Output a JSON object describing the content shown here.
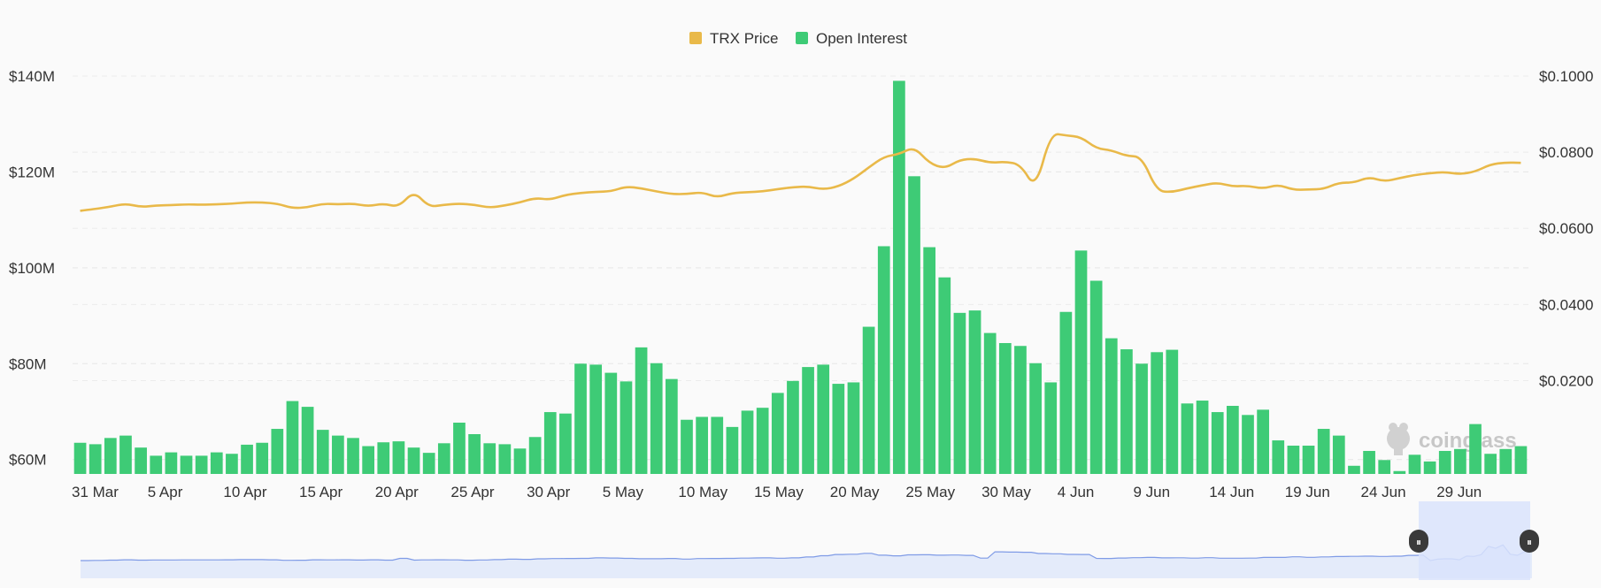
{
  "chart_data": {
    "type": "bar+line",
    "legend": {
      "placement": "top-center",
      "items": [
        {
          "label": "TRX Price",
          "color": "#e9b949"
        },
        {
          "label": "Open Interest",
          "color": "#3ecb76"
        }
      ]
    },
    "watermark": "coinglass",
    "grid": "horizontal-dashed",
    "colors": {
      "bar": "#3ecb76",
      "line": "#e9b949",
      "navigator_line": "#7f9be6",
      "navigator_fill": "#e4ebfa",
      "navigator_selection": "#d9e3fb"
    },
    "x_tick_labels": [
      "31 Mar",
      "5 Apr",
      "10 Apr",
      "15 Apr",
      "20 Apr",
      "25 Apr",
      "30 Apr",
      "5 May",
      "10 May",
      "15 May",
      "20 May",
      "25 May",
      "30 May",
      "4 Jun",
      "9 Jun",
      "14 Jun",
      "19 Jun",
      "24 Jun",
      "29 Jun"
    ],
    "x_tick_index": [
      0,
      5,
      10,
      15,
      20,
      25,
      30,
      35,
      40,
      45,
      50,
      55,
      60,
      65,
      70,
      75,
      80,
      85,
      90
    ],
    "y_left": {
      "labels": [
        "$140M",
        "$120M",
        "$100M",
        "$80M",
        "$60M"
      ],
      "ticks": [
        140,
        120,
        100,
        80,
        60
      ],
      "range": [
        57,
        140
      ],
      "unit": "M USD"
    },
    "y_right": {
      "labels": [
        "$0.1000",
        "$0.0800",
        "$0.0600",
        "$0.0400",
        "$0.0200"
      ],
      "ticks": [
        0.1,
        0.08,
        0.06,
        0.04,
        0.02
      ],
      "range": [
        -0.0045,
        0.1
      ],
      "unit": "USD"
    },
    "series": [
      {
        "name": "Open Interest",
        "axis": "left",
        "kind": "bar",
        "values": [
          63.5,
          63.2,
          64.5,
          65.0,
          62.5,
          60.8,
          61.5,
          60.8,
          60.8,
          61.5,
          61.2,
          63.1,
          63.5,
          66.4,
          72.2,
          71.0,
          66.2,
          65.0,
          64.5,
          62.8,
          63.6,
          63.8,
          62.5,
          61.4,
          63.4,
          67.7,
          65.3,
          63.4,
          63.2,
          62.3,
          64.7,
          69.9,
          69.6,
          80.0,
          79.8,
          78.1,
          76.3,
          83.4,
          80.1,
          76.8,
          68.3,
          68.9,
          68.9,
          66.8,
          70.2,
          70.8,
          73.9,
          76.4,
          79.3,
          79.8,
          75.8,
          76.1,
          87.7,
          104.5,
          139.0,
          119.1,
          104.3,
          98.0,
          90.6,
          91.1,
          86.4,
          84.3,
          83.7,
          80.1,
          76.1,
          90.8,
          103.6,
          97.3,
          85.3,
          83.0,
          80.0,
          82.4,
          82.9,
          71.7,
          72.3,
          69.9,
          71.2,
          69.3,
          70.4,
          64.0,
          62.9,
          62.9,
          66.4,
          65.0,
          58.7,
          61.8,
          59.9,
          57.6,
          61.0,
          59.6,
          61.8,
          62.2,
          67.4,
          61.2,
          62.2,
          62.8
        ]
      },
      {
        "name": "TRX Price",
        "axis": "right",
        "kind": "line",
        "values": [
          0.0646,
          0.0651,
          0.0657,
          0.0665,
          0.0656,
          0.066,
          0.0661,
          0.0663,
          0.0662,
          0.0663,
          0.0665,
          0.0668,
          0.0668,
          0.0665,
          0.0653,
          0.0655,
          0.0665,
          0.0663,
          0.0665,
          0.0658,
          0.0665,
          0.0656,
          0.0698,
          0.0656,
          0.0662,
          0.0665,
          0.0662,
          0.0654,
          0.066,
          0.0668,
          0.068,
          0.0675,
          0.0688,
          0.0693,
          0.0696,
          0.0697,
          0.071,
          0.0705,
          0.0697,
          0.069,
          0.069,
          0.0695,
          0.0681,
          0.0693,
          0.0695,
          0.0697,
          0.0703,
          0.0708,
          0.071,
          0.0702,
          0.071,
          0.073,
          0.076,
          0.0788,
          0.0795,
          0.0814,
          0.0771,
          0.0757,
          0.078,
          0.0783,
          0.0772,
          0.0775,
          0.0768,
          0.0703,
          0.085,
          0.0844,
          0.084,
          0.081,
          0.0805,
          0.079,
          0.0788,
          0.0698,
          0.0695,
          0.0705,
          0.0713,
          0.072,
          0.071,
          0.0712,
          0.0704,
          0.0715,
          0.0701,
          0.0702,
          0.0703,
          0.072,
          0.072,
          0.0735,
          0.0723,
          0.0732,
          0.074,
          0.0745,
          0.0748,
          0.0742,
          0.0749,
          0.0768,
          0.0773,
          0.0772
        ]
      }
    ],
    "navigator": {
      "selection": "right-end",
      "handle_glyph": "⏸"
    }
  }
}
